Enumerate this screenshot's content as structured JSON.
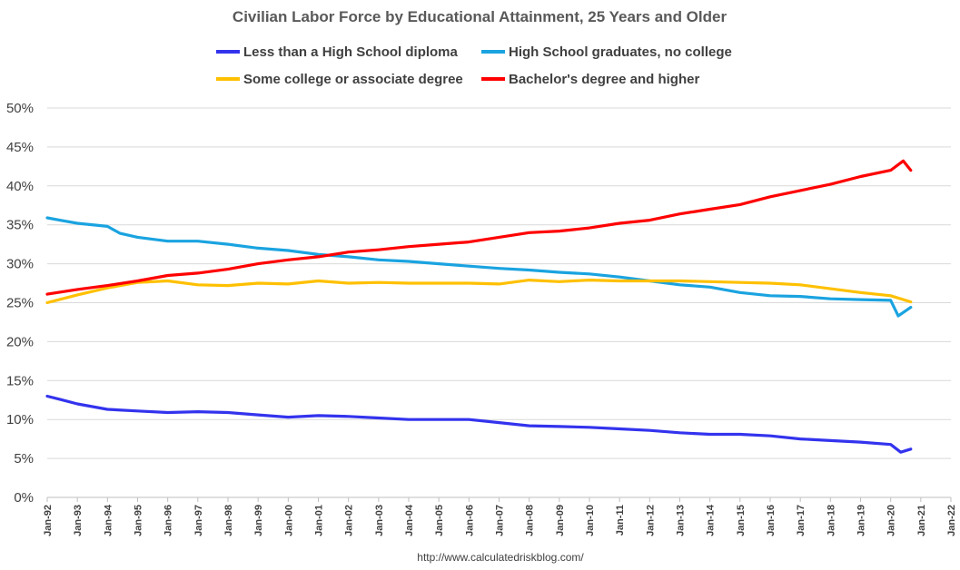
{
  "chart_data": {
    "type": "line",
    "title": "Civilian Labor Force by Educational Attainment, 25 Years and Older",
    "source": "http://www.calculatedriskblog.com/",
    "xlabel": "",
    "ylabel": "",
    "ylim": [
      0,
      50
    ],
    "yticks": [
      "0%",
      "5%",
      "10%",
      "15%",
      "20%",
      "25%",
      "30%",
      "35%",
      "40%",
      "45%",
      "50%"
    ],
    "xticks": [
      "Jan-92",
      "Jan-93",
      "Jan-94",
      "Jan-95",
      "Jan-96",
      "Jan-97",
      "Jan-98",
      "Jan-99",
      "Jan-00",
      "Jan-01",
      "Jan-02",
      "Jan-03",
      "Jan-04",
      "Jan-05",
      "Jan-06",
      "Jan-07",
      "Jan-08",
      "Jan-09",
      "Jan-10",
      "Jan-11",
      "Jan-12",
      "Jan-13",
      "Jan-14",
      "Jan-15",
      "Jan-16",
      "Jan-17",
      "Jan-18",
      "Jan-19",
      "Jan-20",
      "Jan-21",
      "Jan-22"
    ],
    "xlim": [
      "1992-01",
      "2022-01"
    ],
    "grid": true,
    "legend_position": "top",
    "series": [
      {
        "name": "Less than a High School diploma",
        "color": "#3333ee",
        "points": [
          [
            "1992-01",
            13.0
          ],
          [
            "1992-06",
            12.6
          ],
          [
            "1993-01",
            12.0
          ],
          [
            "1994-01",
            11.3
          ],
          [
            "1995-01",
            11.1
          ],
          [
            "1996-01",
            10.9
          ],
          [
            "1997-01",
            11.0
          ],
          [
            "1998-01",
            10.9
          ],
          [
            "1999-01",
            10.6
          ],
          [
            "2000-01",
            10.3
          ],
          [
            "2001-01",
            10.5
          ],
          [
            "2002-01",
            10.4
          ],
          [
            "2003-01",
            10.2
          ],
          [
            "2004-01",
            10.0
          ],
          [
            "2005-01",
            10.0
          ],
          [
            "2006-01",
            10.0
          ],
          [
            "2007-01",
            9.6
          ],
          [
            "2008-01",
            9.2
          ],
          [
            "2009-01",
            9.1
          ],
          [
            "2010-01",
            9.0
          ],
          [
            "2011-01",
            8.8
          ],
          [
            "2012-01",
            8.6
          ],
          [
            "2013-01",
            8.3
          ],
          [
            "2014-01",
            8.1
          ],
          [
            "2015-01",
            8.1
          ],
          [
            "2016-01",
            7.9
          ],
          [
            "2017-01",
            7.5
          ],
          [
            "2018-01",
            7.3
          ],
          [
            "2019-01",
            7.1
          ],
          [
            "2020-01",
            6.8
          ],
          [
            "2020-05",
            5.8
          ],
          [
            "2020-09",
            6.2
          ]
        ]
      },
      {
        "name": "High School graduates, no college",
        "color": "#1aa3e0",
        "points": [
          [
            "1992-01",
            35.9
          ],
          [
            "1992-06",
            35.6
          ],
          [
            "1993-01",
            35.2
          ],
          [
            "1994-01",
            34.8
          ],
          [
            "1994-06",
            33.9
          ],
          [
            "1995-01",
            33.4
          ],
          [
            "1996-01",
            32.9
          ],
          [
            "1997-01",
            32.9
          ],
          [
            "1998-01",
            32.5
          ],
          [
            "1999-01",
            32.0
          ],
          [
            "2000-01",
            31.7
          ],
          [
            "2001-01",
            31.2
          ],
          [
            "2002-01",
            30.9
          ],
          [
            "2003-01",
            30.5
          ],
          [
            "2004-01",
            30.3
          ],
          [
            "2005-01",
            30.0
          ],
          [
            "2006-01",
            29.7
          ],
          [
            "2007-01",
            29.4
          ],
          [
            "2008-01",
            29.2
          ],
          [
            "2009-01",
            28.9
          ],
          [
            "2010-01",
            28.7
          ],
          [
            "2011-01",
            28.3
          ],
          [
            "2012-01",
            27.8
          ],
          [
            "2013-01",
            27.3
          ],
          [
            "2014-01",
            27.0
          ],
          [
            "2015-01",
            26.3
          ],
          [
            "2016-01",
            25.9
          ],
          [
            "2017-01",
            25.8
          ],
          [
            "2018-01",
            25.5
          ],
          [
            "2019-01",
            25.4
          ],
          [
            "2020-01",
            25.3
          ],
          [
            "2020-04",
            23.3
          ],
          [
            "2020-09",
            24.4
          ]
        ]
      },
      {
        "name": "Some college or associate degree",
        "color": "#ffc000",
        "points": [
          [
            "1992-01",
            25.0
          ],
          [
            "1993-01",
            26.0
          ],
          [
            "1994-01",
            26.9
          ],
          [
            "1995-01",
            27.6
          ],
          [
            "1996-01",
            27.8
          ],
          [
            "1997-01",
            27.3
          ],
          [
            "1998-01",
            27.2
          ],
          [
            "1999-01",
            27.5
          ],
          [
            "2000-01",
            27.4
          ],
          [
            "2001-01",
            27.8
          ],
          [
            "2002-01",
            27.5
          ],
          [
            "2003-01",
            27.6
          ],
          [
            "2004-01",
            27.5
          ],
          [
            "2005-01",
            27.5
          ],
          [
            "2006-01",
            27.5
          ],
          [
            "2007-01",
            27.4
          ],
          [
            "2008-01",
            27.9
          ],
          [
            "2009-01",
            27.7
          ],
          [
            "2010-01",
            27.9
          ],
          [
            "2011-01",
            27.8
          ],
          [
            "2012-01",
            27.8
          ],
          [
            "2013-01",
            27.8
          ],
          [
            "2014-01",
            27.7
          ],
          [
            "2015-01",
            27.6
          ],
          [
            "2016-01",
            27.5
          ],
          [
            "2017-01",
            27.3
          ],
          [
            "2018-01",
            26.8
          ],
          [
            "2019-01",
            26.3
          ],
          [
            "2020-01",
            25.9
          ],
          [
            "2020-09",
            25.1
          ]
        ]
      },
      {
        "name": "Bachelor's degree and higher",
        "color": "#ff0000",
        "points": [
          [
            "1992-01",
            26.1
          ],
          [
            "1993-01",
            26.7
          ],
          [
            "1994-01",
            27.2
          ],
          [
            "1995-01",
            27.8
          ],
          [
            "1996-01",
            28.5
          ],
          [
            "1997-01",
            28.8
          ],
          [
            "1998-01",
            29.3
          ],
          [
            "1999-01",
            30.0
          ],
          [
            "2000-01",
            30.5
          ],
          [
            "2001-01",
            30.9
          ],
          [
            "2002-01",
            31.5
          ],
          [
            "2003-01",
            31.8
          ],
          [
            "2004-01",
            32.2
          ],
          [
            "2005-01",
            32.5
          ],
          [
            "2006-01",
            32.8
          ],
          [
            "2007-01",
            33.4
          ],
          [
            "2008-01",
            34.0
          ],
          [
            "2009-01",
            34.2
          ],
          [
            "2010-01",
            34.6
          ],
          [
            "2011-01",
            35.2
          ],
          [
            "2012-01",
            35.6
          ],
          [
            "2013-01",
            36.4
          ],
          [
            "2014-01",
            37.0
          ],
          [
            "2015-01",
            37.6
          ],
          [
            "2016-01",
            38.6
          ],
          [
            "2017-01",
            39.4
          ],
          [
            "2018-01",
            40.2
          ],
          [
            "2019-01",
            41.2
          ],
          [
            "2020-01",
            42.0
          ],
          [
            "2020-06",
            43.2
          ],
          [
            "2020-09",
            42.0
          ]
        ]
      }
    ]
  }
}
